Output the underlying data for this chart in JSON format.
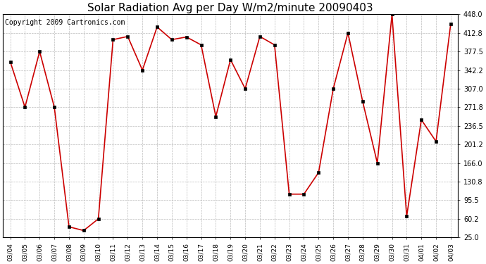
{
  "title": "Solar Radiation Avg per Day W/m2/minute 20090403",
  "copyright_text": "Copyright 2009 Cartronics.com",
  "dates": [
    "03/04",
    "03/05",
    "03/06",
    "03/07",
    "03/08",
    "03/09",
    "03/10",
    "03/11",
    "03/12",
    "03/13",
    "03/14",
    "03/15",
    "03/16",
    "03/17",
    "03/18",
    "03/19",
    "03/20",
    "03/21",
    "03/22",
    "03/23",
    "03/24",
    "03/25",
    "03/26",
    "03/27",
    "03/28",
    "03/29",
    "03/30",
    "03/31",
    "04/01",
    "04/02",
    "04/03"
  ],
  "values": [
    358.0,
    271.8,
    377.5,
    271.8,
    45.0,
    38.0,
    60.2,
    400.0,
    406.0,
    342.2,
    424.0,
    400.0,
    405.0,
    390.0,
    254.0,
    362.0,
    307.0,
    406.0,
    390.0,
    107.0,
    107.0,
    148.0,
    307.0,
    412.8,
    283.0,
    166.0,
    448.0,
    65.0,
    248.0,
    207.0,
    430.0
  ],
  "line_color": "#cc0000",
  "marker_color": "#000000",
  "bg_color": "#ffffff",
  "grid_color": "#bbbbbb",
  "ylim_min": 25.0,
  "ylim_max": 448.0,
  "yticks": [
    25.0,
    60.2,
    95.5,
    130.8,
    166.0,
    201.2,
    236.5,
    271.8,
    307.0,
    342.2,
    377.5,
    412.8,
    448.0
  ],
  "title_fontsize": 11,
  "copyright_fontsize": 7,
  "tick_fontsize": 7,
  "xtick_fontsize": 6.5
}
